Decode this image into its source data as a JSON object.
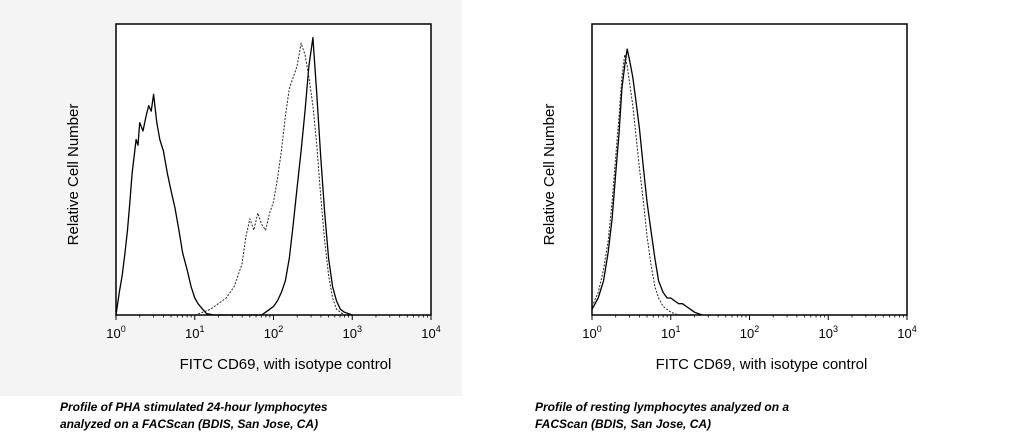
{
  "chart_data": [
    {
      "type": "line",
      "title": "",
      "xlabel": "FITC CD69, with isotype control",
      "ylabel": "Relative Cell Number",
      "x_scale": "log",
      "xlim": [
        1,
        10000
      ],
      "ylim": [
        0,
        100
      ],
      "x_ticks": [
        {
          "base": "10",
          "exp": "0"
        },
        {
          "base": "10",
          "exp": "1"
        },
        {
          "base": "10",
          "exp": "2"
        },
        {
          "base": "10",
          "exp": "3"
        },
        {
          "base": "10",
          "exp": "4"
        }
      ],
      "grid": false,
      "series": [
        {
          "style": "solid",
          "x": [
            1.0,
            1.1,
            1.2,
            1.3,
            1.4,
            1.5,
            1.6,
            1.7,
            1.8,
            1.9,
            2.0,
            2.2,
            2.4,
            2.6,
            2.8,
            3.0,
            3.3,
            3.6,
            4.0,
            4.5,
            5.0,
            5.6,
            6.3,
            7.0,
            8.0,
            9.0,
            10.0,
            11.0,
            12.6,
            14.1,
            17.8,
            25.1,
            35.5,
            50.1,
            63.1,
            70.8,
            79.4,
            89.1,
            100.0,
            112.2,
            125.9,
            141.3,
            158.5,
            177.8,
            199.5,
            223.9,
            251.2,
            281.8,
            316.2,
            354.8,
            398.1,
            446.7,
            501.2,
            562.3,
            631.0,
            707.9,
            794.3,
            891.3,
            1000.0
          ],
          "y": [
            0,
            8,
            14,
            22,
            30,
            40,
            50,
            56,
            62,
            60,
            68,
            65,
            70,
            74,
            72,
            78,
            68,
            62,
            58,
            50,
            44,
            38,
            30,
            22,
            16,
            10,
            6,
            4,
            2,
            0.5,
            0,
            0,
            0,
            0,
            0,
            0,
            1,
            2,
            3,
            5,
            8,
            12,
            20,
            32,
            45,
            58,
            72,
            88,
            98,
            78,
            56,
            36,
            20,
            10,
            5,
            2,
            1,
            0.5,
            0
          ]
        },
        {
          "style": "dotted",
          "x": [
            10.0,
            12.6,
            15.8,
            19.9,
            25.1,
            31.6,
            39.8,
            44.7,
            50.1,
            56.2,
            63.1,
            70.8,
            79.4,
            89.1,
            100.0,
            112.2,
            125.9,
            141.3,
            158.5,
            177.8,
            199.5,
            223.9,
            251.2,
            281.8,
            316.2,
            354.8,
            398.1,
            446.7,
            501.2,
            562.3,
            631.0,
            707.9,
            794.3
          ],
          "y": [
            0,
            1,
            2,
            4,
            6,
            10,
            18,
            28,
            34,
            30,
            36,
            32,
            30,
            36,
            40,
            48,
            58,
            70,
            80,
            84,
            88,
            96,
            92,
            84,
            74,
            60,
            42,
            26,
            14,
            6,
            2,
            1,
            0
          ]
        }
      ]
    },
    {
      "type": "line",
      "title": "",
      "xlabel": "FITC CD69, with isotype control",
      "ylabel": "Relative Cell Number",
      "x_scale": "log",
      "xlim": [
        1,
        10000
      ],
      "ylim": [
        0,
        100
      ],
      "x_ticks": [
        {
          "base": "10",
          "exp": "0"
        },
        {
          "base": "10",
          "exp": "1"
        },
        {
          "base": "10",
          "exp": "2"
        },
        {
          "base": "10",
          "exp": "3"
        },
        {
          "base": "10",
          "exp": "4"
        }
      ],
      "grid": false,
      "series": [
        {
          "style": "solid",
          "x": [
            1.0,
            1.2,
            1.4,
            1.6,
            1.8,
            2.0,
            2.2,
            2.4,
            2.6,
            2.8,
            3.0,
            3.3,
            3.6,
            4.0,
            4.5,
            5.0,
            5.6,
            6.3,
            7.0,
            8.0,
            9.0,
            10.0,
            11.2,
            12.6,
            14.1,
            15.8,
            17.8,
            20.0,
            22.4,
            25.1
          ],
          "y": [
            2,
            6,
            12,
            22,
            34,
            50,
            64,
            80,
            88,
            94,
            90,
            84,
            76,
            66,
            52,
            40,
            30,
            20,
            12,
            8,
            6,
            6,
            5,
            4,
            4,
            3,
            2,
            1,
            0.5,
            0
          ]
        },
        {
          "style": "dotted",
          "x": [
            1.0,
            1.2,
            1.4,
            1.6,
            1.8,
            2.0,
            2.2,
            2.4,
            2.6,
            2.8,
            3.0,
            3.3,
            3.6,
            4.0,
            4.5,
            5.0,
            5.6,
            6.3,
            7.0,
            8.0,
            9.0,
            10.0,
            11.2,
            12.6
          ],
          "y": [
            3,
            8,
            16,
            26,
            40,
            56,
            70,
            84,
            92,
            88,
            82,
            74,
            64,
            52,
            40,
            28,
            18,
            10,
            6,
            3,
            2,
            1,
            0.5,
            0
          ]
        }
      ]
    }
  ],
  "captions": [
    {
      "lines": [
        "Profile of PHA stimulated 24-hour lymphocytes",
        "analyzed on a FACScan (BDIS, San Jose, CA)"
      ]
    },
    {
      "lines": [
        "Profile of resting lymphocytes analyzed on a",
        "FACScan (BDIS, San Jose, CA)"
      ]
    }
  ]
}
